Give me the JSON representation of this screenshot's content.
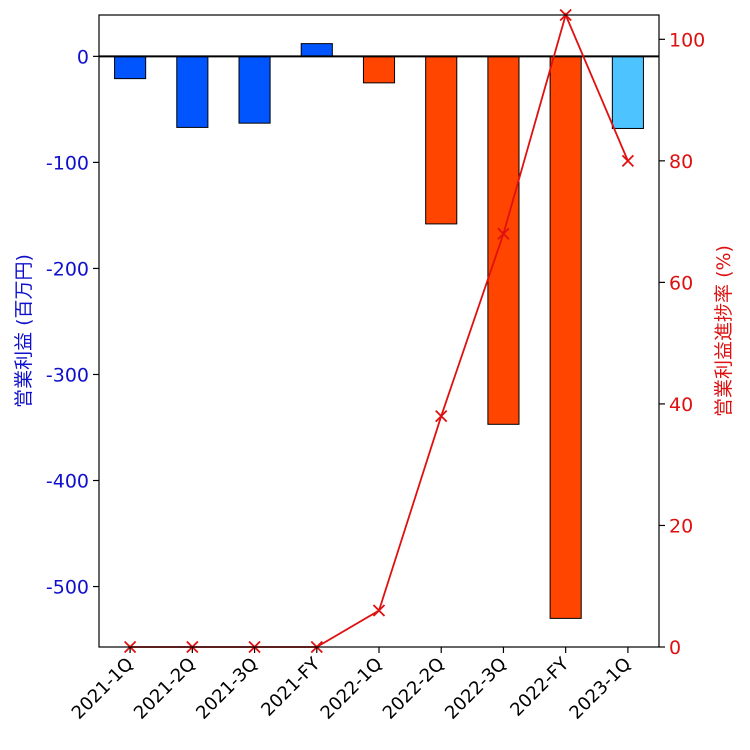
{
  "chart_data": {
    "type": "bar",
    "categories": [
      "2021-1Q",
      "2021-2Q",
      "2021-3Q",
      "2021-FY",
      "2022-1Q",
      "2022-2Q",
      "2022-3Q",
      "2022-FY",
      "2023-1Q"
    ],
    "series": [
      {
        "axis": "left",
        "kind": "bar",
        "values": [
          -21,
          -67,
          -63,
          12,
          -25,
          -158,
          -347,
          -530,
          -68
        ],
        "colors": [
          "#0055ff",
          "#0055ff",
          "#0055ff",
          "#0055ff",
          "#ff4500",
          "#ff4500",
          "#ff4500",
          "#ff4500",
          "#4dc3ff"
        ]
      },
      {
        "axis": "right",
        "kind": "line",
        "marker": "x",
        "color": "#e01010",
        "values": [
          0,
          0,
          0,
          0,
          6,
          38,
          68,
          104,
          80
        ]
      }
    ],
    "ylabel_left": "営業利益 (百万円)",
    "ylabel_right": "営業利益進捗率 (%)",
    "ylim_left": [
      -557,
      39
    ],
    "ylim_right": [
      0,
      104
    ],
    "yticks_left": [
      0,
      -100,
      -200,
      -300,
      -400,
      -500
    ],
    "yticks_right": [
      0,
      20,
      40,
      60,
      80,
      100
    ],
    "grid": false,
    "zero_line": true
  }
}
